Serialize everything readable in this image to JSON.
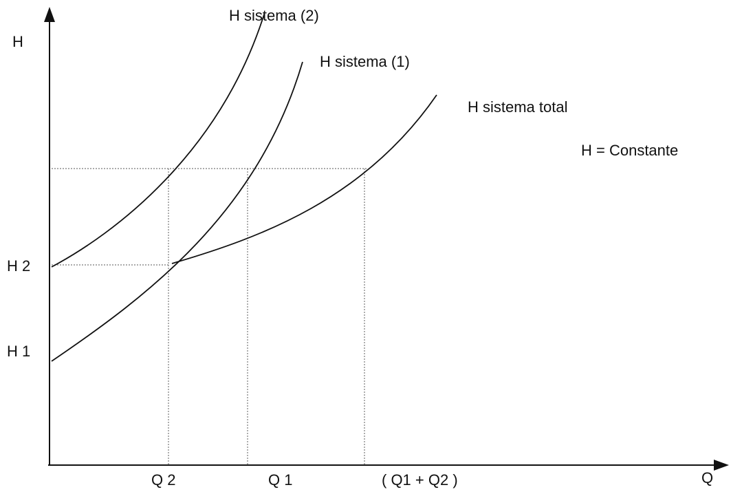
{
  "axes": {
    "y_label": "H",
    "x_label": "Q"
  },
  "curves": [
    {
      "label": "H sistema (2)"
    },
    {
      "label": "H sistema (1)"
    },
    {
      "label": "H sistema total"
    }
  ],
  "annotation": "H = Constante",
  "y_marks": [
    "H 2",
    "H 1"
  ],
  "x_marks": [
    "Q 2",
    "Q 1",
    "( Q1 + Q2 )"
  ]
}
